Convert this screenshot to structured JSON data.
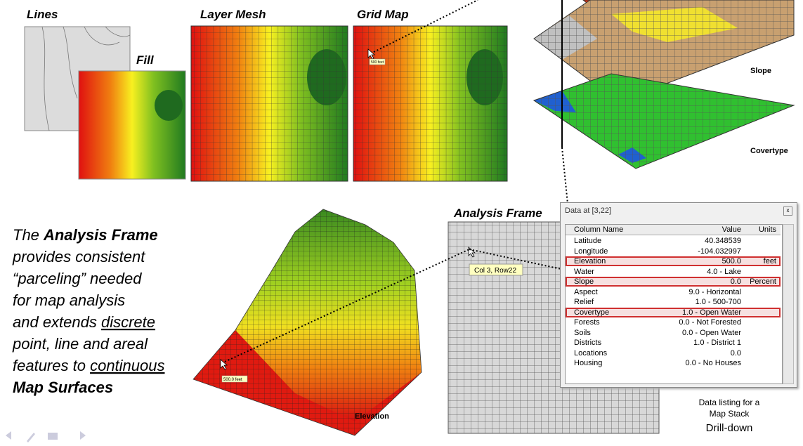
{
  "panels": {
    "lines": "Lines",
    "fill": "Fill",
    "layer_mesh": "Layer Mesh",
    "grid_map": "Grid Map",
    "grid_map_tooltip": "500 feet"
  },
  "stack": {
    "slope": "Slope",
    "covertype": "Covertype"
  },
  "paragraph": [
    [
      {
        "text": "The "
      },
      {
        "text": "Analysis Frame",
        "style": "bold"
      }
    ],
    [
      {
        "text": "provides consistent"
      }
    ],
    [
      {
        "text": "“parceling” needed"
      }
    ],
    [
      {
        "text": "for map analysis"
      }
    ],
    [
      {
        "text": "and extends "
      },
      {
        "text": "discrete",
        "style": "underline"
      }
    ],
    [
      {
        "text": "point, line and areal"
      }
    ],
    [
      {
        "text": "features to  "
      },
      {
        "text": "continuous",
        "style": "underline"
      }
    ],
    [
      {
        "text": "Map Surfaces",
        "style": "bold"
      }
    ]
  ],
  "elevation": {
    "label": "Elevation",
    "tooltip": "500.0 feet"
  },
  "analysis_frame": {
    "title": "Analysis Frame",
    "tooltip": "Col 3, Row22"
  },
  "data_window": {
    "title": "Data at [3,22]",
    "columns": [
      "Column Name",
      "Value",
      "Units"
    ],
    "rows": [
      {
        "name": "Latitude",
        "value": "40.348539"
      },
      {
        "name": "Longitude",
        "value": "-104.032997"
      },
      {
        "name": "Elevation",
        "value": "500.0",
        "units": "feet",
        "highlighted": true
      },
      {
        "name": "Water",
        "value": "4.0 - Lake"
      },
      {
        "name": "Slope",
        "value": "0.0",
        "units": "Percent",
        "highlighted": true
      },
      {
        "name": "Aspect",
        "value": "9.0 - Horizontal"
      },
      {
        "name": "Relief",
        "value": "1.0 - 500-700"
      },
      {
        "name": "Covertype",
        "value": "1.0 - Open Water",
        "highlighted": true
      },
      {
        "name": "Forests",
        "value": "0.0 - Not Forested"
      },
      {
        "name": "Soils",
        "value": "0.0 - Open Water"
      },
      {
        "name": "Districts",
        "value": "1.0 - District 1"
      },
      {
        "name": "Locations",
        "value": "0.0"
      },
      {
        "name": "Housing",
        "value": "0.0 - No Houses"
      }
    ]
  },
  "caption": {
    "line1": "Data listing for a",
    "line2": "Map Stack",
    "emphasis": "Drill-down"
  }
}
